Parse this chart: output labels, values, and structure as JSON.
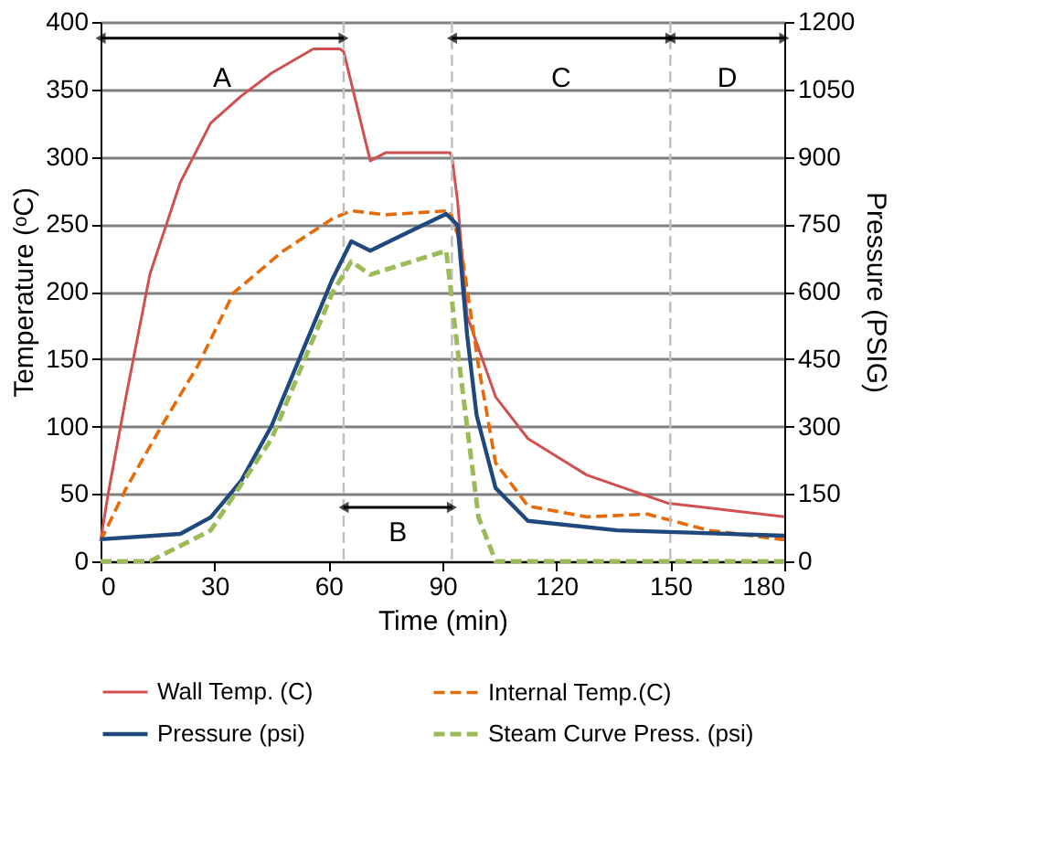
{
  "chart_data": {
    "type": "line",
    "xlabel": "Time (min)",
    "ylabel": "Temperature (ᵒC)",
    "y2label": "Pressure (PSIG)",
    "xlim": [
      0,
      180
    ],
    "xticks": [
      0,
      30,
      60,
      90,
      120,
      150,
      180
    ],
    "ylim": [
      0,
      400
    ],
    "yticks": [
      0,
      50,
      100,
      150,
      200,
      250,
      300,
      350,
      400
    ],
    "y2lim": [
      0,
      1200
    ],
    "y2ticks": [
      0,
      150,
      300,
      450,
      600,
      750,
      900,
      1050,
      1200
    ],
    "grid": "y",
    "legend": "bottom",
    "marker": "none",
    "series": [
      {
        "name": "Wall Temp. (C)",
        "color": "#d0504f",
        "line_style": "solid",
        "x": [
          0,
          2,
          6.7,
          13,
          21,
          29,
          37,
          45,
          56,
          63,
          64,
          71,
          75,
          92,
          92.5,
          94,
          96.5,
          104,
          112.5,
          128,
          149.5,
          165,
          180
        ],
        "values": [
          15,
          50,
          122,
          213,
          281,
          325,
          345,
          362,
          380,
          380,
          378,
          297,
          303,
          303,
          300,
          267,
          182,
          122,
          91,
          64,
          43,
          38,
          33
        ]
      },
      {
        "name": "Internal Temp.(C)",
        "color": "#e46c0a",
        "line_style": "dashed",
        "x": [
          0,
          6.7,
          16,
          25.6,
          35,
          48,
          61,
          66,
          75,
          92,
          94.7,
          99.5,
          104,
          112.5,
          128,
          144,
          160,
          180
        ],
        "values": [
          15,
          54,
          100,
          145,
          199,
          230,
          254,
          260,
          257,
          260,
          236,
          145,
          73,
          41,
          33,
          35,
          23,
          16
        ]
      },
      {
        "name": "Pressure (psi)",
        "color": "#1f497d",
        "line_style": "solid",
        "axis": "y2",
        "x": [
          0,
          21,
          29,
          37,
          45,
          53,
          61,
          66,
          71,
          80,
          91,
          94,
          96.5,
          99,
          104,
          112.5,
          136,
          180
        ],
        "values": [
          49,
          61,
          98,
          179,
          301,
          464,
          627,
          712,
          691,
          728,
          773,
          748,
          504,
          325,
          163,
          90,
          69,
          57
        ]
      },
      {
        "name": "Steam Curve Press. (psi)",
        "color": "#9bbb59",
        "line_style": "dashed",
        "axis": "y2",
        "x": [
          0,
          13,
          29,
          45,
          61,
          66,
          71,
          91,
          94.5,
          99.5,
          104,
          180
        ],
        "values": [
          0,
          0,
          69,
          272,
          597,
          667,
          638,
          691,
          435,
          98,
          0,
          0
        ]
      }
    ],
    "ref_lines": [
      {
        "axis": "x",
        "value": 64,
        "color": "#bfbfbf",
        "line_style": "dashed"
      },
      {
        "axis": "x",
        "value": 92.5,
        "color": "#bfbfbf",
        "line_style": "dashed"
      },
      {
        "axis": "x",
        "value": 150,
        "color": "#bfbfbf",
        "line_style": "dashed"
      }
    ],
    "annotations": [
      "A",
      "B",
      "C",
      "D"
    ]
  }
}
